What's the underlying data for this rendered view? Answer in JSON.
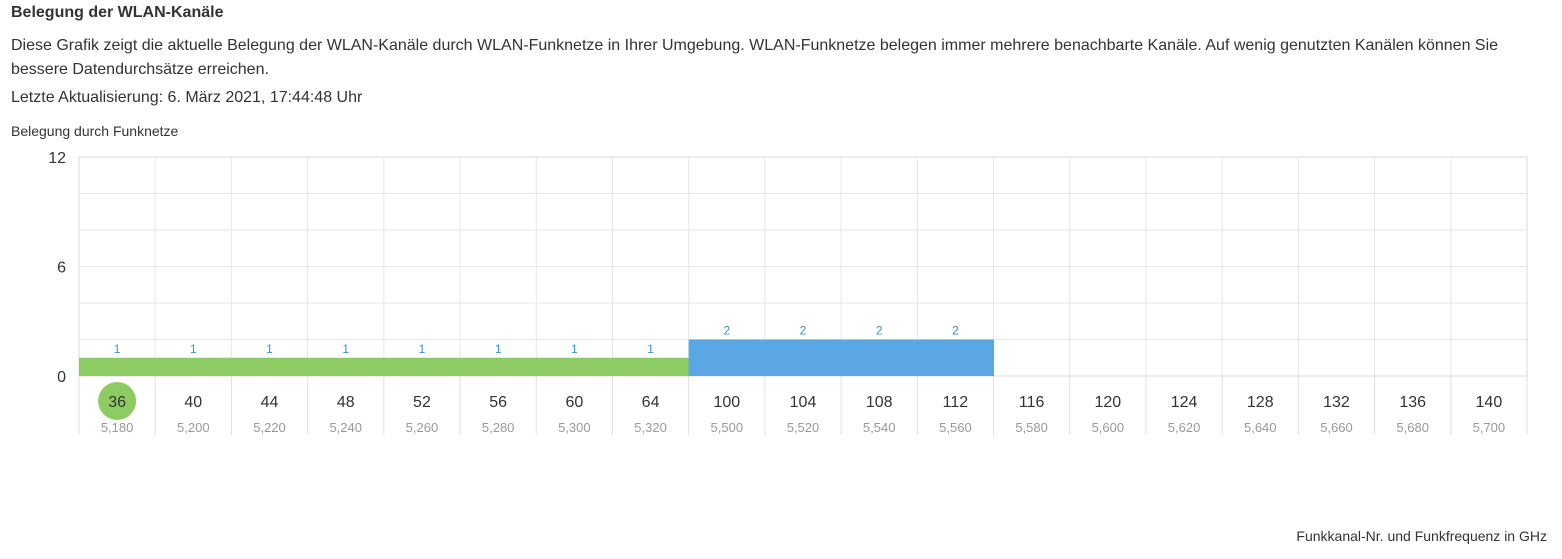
{
  "header": {
    "title": "Belegung der WLAN-Kanäle",
    "description": "Diese Grafik zeigt die aktuelle Belegung der WLAN-Kanäle durch WLAN-Funknetze in Ihrer Umgebung. WLAN-Funknetze belegen immer mehrere benachbarte Kanäle. Auf wenig genutzten Kanälen können Sie bessere Datendurchsätze erreichen.",
    "last_update": "Letzte Aktualisierung: 6. März 2021, 17:44:48 Uhr"
  },
  "chart_data": {
    "type": "bar",
    "ylabel": "Belegung durch Funknetze",
    "xlabel": "Funkkanal-Nr. und Funkfrequenz in GHz",
    "ylim": [
      0,
      12
    ],
    "yticks": [
      "0",
      "6",
      "12"
    ],
    "grid": true,
    "categories": [
      "36",
      "40",
      "44",
      "48",
      "52",
      "56",
      "60",
      "64",
      "100",
      "104",
      "108",
      "112",
      "116",
      "120",
      "124",
      "128",
      "132",
      "136",
      "140"
    ],
    "frequencies": [
      "5,180",
      "5,200",
      "5,220",
      "5,240",
      "5,260",
      "5,280",
      "5,300",
      "5,320",
      "5,500",
      "5,520",
      "5,540",
      "5,560",
      "5,580",
      "5,600",
      "5,620",
      "5,640",
      "5,660",
      "5,680",
      "5,700"
    ],
    "values": [
      1,
      1,
      1,
      1,
      1,
      1,
      1,
      1,
      2,
      2,
      2,
      2,
      0,
      0,
      0,
      0,
      0,
      0,
      0
    ],
    "bar_colors": [
      "#8dcc63",
      "#8dcc63",
      "#8dcc63",
      "#8dcc63",
      "#8dcc63",
      "#8dcc63",
      "#8dcc63",
      "#8dcc63",
      "#5aa7e4",
      "#5aa7e4",
      "#5aa7e4",
      "#5aa7e4",
      "",
      "",
      "",
      "",
      "",
      "",
      ""
    ],
    "label_color": "#3d8fd6",
    "highlighted_channel": "36",
    "highlight_color": "#8dcc63"
  }
}
